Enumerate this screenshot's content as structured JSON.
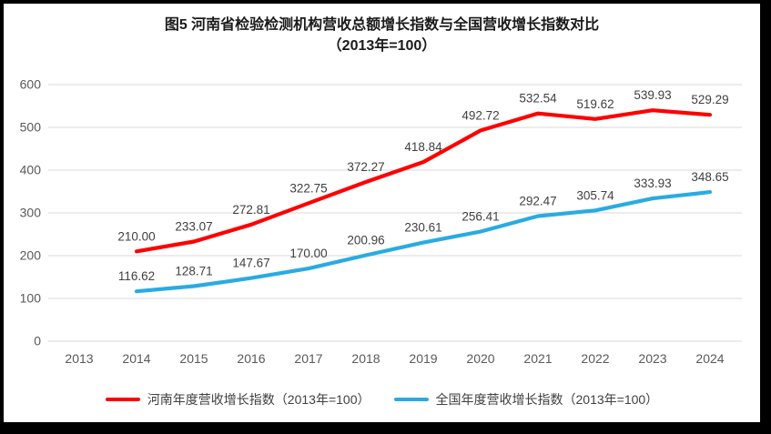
{
  "title": {
    "line1": "图5  河南省检验检测机构营收总额增长指数与全国营收增长指数对比",
    "line2": "（2013年=100）"
  },
  "chart_data": {
    "type": "line",
    "x": [
      2013,
      2014,
      2015,
      2016,
      2017,
      2018,
      2019,
      2020,
      2021,
      2022,
      2023,
      2024
    ],
    "series": [
      {
        "name": "河南年度营收增长指数（2013年=100）",
        "color": "#ff0000",
        "start_index": 1,
        "values": [
          210.0,
          233.07,
          272.81,
          322.75,
          372.27,
          418.84,
          492.72,
          532.54,
          519.62,
          539.93,
          529.29
        ]
      },
      {
        "name": "全国年度营收增长指数（2013年=100）",
        "color": "#29abe2",
        "start_index": 1,
        "values": [
          116.62,
          128.71,
          147.67,
          170.0,
          200.96,
          230.61,
          256.41,
          292.47,
          305.74,
          333.93,
          348.65
        ]
      }
    ],
    "ylim": [
      0,
      600
    ],
    "ytick_step": 100,
    "yticks": [
      0,
      100,
      200,
      300,
      400,
      500,
      600
    ],
    "grid": "horizontal",
    "data_labels": true,
    "data_label_format": "0.00",
    "legend_position": "bottom"
  },
  "colors": {
    "frame": "#000000",
    "background": "#ffffff",
    "gridline": "#d9d9d9",
    "tick_text": "#595959",
    "label_text": "#404040",
    "title_text": "#1a1a1a"
  }
}
